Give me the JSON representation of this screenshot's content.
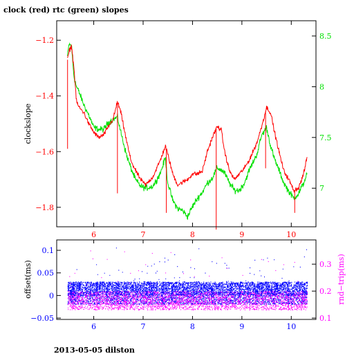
{
  "title": "clock (red) rtc (green) slopes",
  "footer": "2013-05-05 dilston",
  "colors": {
    "red": "#ff0000",
    "green": "#00e000",
    "blue": "#0000ff",
    "magenta": "#ff00ff",
    "frame": "#000000"
  },
  "chart_data": [
    {
      "type": "line",
      "ylabel": "clockslope",
      "xlim": [
        5.25,
        10.5
      ],
      "ylim": [
        -1.87,
        -1.13
      ],
      "xticks": [
        6,
        7,
        8,
        9,
        10
      ],
      "xtick_labels": [
        "6",
        "7",
        "8",
        "9",
        "10"
      ],
      "yticks": [
        -1.8,
        -1.6,
        -1.4,
        -1.2
      ],
      "ytick_labels": [
        "−1.8",
        "−1.6",
        "−1.4",
        "−1.2"
      ],
      "y2lim": [
        6.62,
        8.65
      ],
      "y2ticks": [
        7,
        7.5,
        8,
        8.5
      ],
      "y2tick_labels": [
        "7",
        "7.5",
        "8",
        "8.5"
      ],
      "series": [
        {
          "name": "clock",
          "color": "#ff0000",
          "axis": "left",
          "x": [
            5.47,
            5.5,
            5.55,
            5.6,
            5.65,
            5.7,
            5.8,
            5.9,
            6.0,
            6.1,
            6.2,
            6.3,
            6.4,
            6.48,
            6.55,
            6.65,
            6.75,
            6.85,
            6.95,
            7.05,
            7.2,
            7.35,
            7.45,
            7.5,
            7.6,
            7.7,
            7.8,
            7.9,
            8.0,
            8.1,
            8.2,
            8.3,
            8.4,
            8.5,
            8.58,
            8.65,
            8.75,
            8.85,
            8.95,
            9.05,
            9.15,
            9.3,
            9.4,
            9.5,
            9.58,
            9.65,
            9.75,
            9.85,
            9.95,
            10.05,
            10.15,
            10.25,
            10.32
          ],
          "y": [
            -1.27,
            -1.24,
            -1.22,
            -1.3,
            -1.42,
            -1.44,
            -1.46,
            -1.5,
            -1.53,
            -1.55,
            -1.54,
            -1.51,
            -1.48,
            -1.42,
            -1.46,
            -1.55,
            -1.63,
            -1.67,
            -1.7,
            -1.72,
            -1.69,
            -1.63,
            -1.58,
            -1.61,
            -1.68,
            -1.72,
            -1.71,
            -1.7,
            -1.68,
            -1.68,
            -1.67,
            -1.6,
            -1.55,
            -1.51,
            -1.52,
            -1.6,
            -1.67,
            -1.7,
            -1.68,
            -1.66,
            -1.63,
            -1.57,
            -1.51,
            -1.44,
            -1.46,
            -1.52,
            -1.6,
            -1.67,
            -1.7,
            -1.74,
            -1.73,
            -1.68,
            -1.62
          ]
        },
        {
          "name": "rtc",
          "color": "#00e000",
          "axis": "right",
          "x": [
            5.47,
            5.5,
            5.55,
            5.6,
            5.65,
            5.7,
            5.8,
            5.9,
            6.0,
            6.1,
            6.2,
            6.3,
            6.4,
            6.48,
            6.55,
            6.65,
            6.75,
            6.85,
            6.95,
            7.05,
            7.2,
            7.35,
            7.45,
            7.5,
            7.6,
            7.7,
            7.8,
            7.9,
            8.0,
            8.1,
            8.2,
            8.3,
            8.4,
            8.5,
            8.58,
            8.65,
            8.75,
            8.85,
            8.95,
            9.05,
            9.15,
            9.3,
            9.4,
            9.5,
            9.58,
            9.65,
            9.75,
            9.85,
            9.95,
            10.05,
            10.15,
            10.25,
            10.32
          ],
          "y": [
            8.3,
            8.42,
            8.4,
            8.1,
            8.0,
            7.95,
            7.82,
            7.72,
            7.6,
            7.58,
            7.58,
            7.65,
            7.68,
            7.7,
            7.55,
            7.35,
            7.2,
            7.08,
            7.02,
            7.0,
            7.02,
            7.15,
            7.3,
            7.05,
            6.88,
            6.8,
            6.78,
            6.72,
            6.82,
            6.9,
            6.96,
            7.05,
            7.1,
            7.2,
            7.18,
            7.15,
            7.05,
            6.98,
            6.98,
            7.05,
            7.18,
            7.33,
            7.52,
            7.6,
            7.42,
            7.3,
            7.18,
            7.05,
            6.97,
            6.9,
            6.95,
            7.05,
            7.15
          ]
        }
      ]
    },
    {
      "type": "scatter",
      "ylabel": "offset(ms)",
      "y2label": "rnd−trip(ms)",
      "xlim": [
        5.25,
        10.5
      ],
      "ylim": [
        -0.053,
        0.123
      ],
      "xticks": [
        6,
        7,
        8,
        9,
        10
      ],
      "xtick_labels": [
        "6",
        "7",
        "8",
        "9",
        "10"
      ],
      "yticks": [
        -0.05,
        0,
        0.05,
        0.1
      ],
      "ytick_labels": [
        "−0.05",
        "0",
        "0.05",
        "0.1"
      ],
      "y2lim": [
        0.095,
        0.39
      ],
      "y2ticks": [
        0.1,
        0.2,
        0.3
      ],
      "y2tick_labels": [
        "0.1",
        "0.2",
        "0.3"
      ],
      "series": [
        {
          "name": "offset",
          "color": "#0000ff",
          "axis": "left",
          "x_range": [
            5.47,
            10.32
          ],
          "band": [
            -0.02,
            0.03
          ],
          "outliers_max": 0.11
        },
        {
          "name": "rnd-trip",
          "color": "#ff00ff",
          "axis": "right",
          "x_range": [
            5.47,
            10.32
          ],
          "band": [
            0.13,
            0.2
          ],
          "outliers_max": 0.36
        }
      ]
    }
  ]
}
